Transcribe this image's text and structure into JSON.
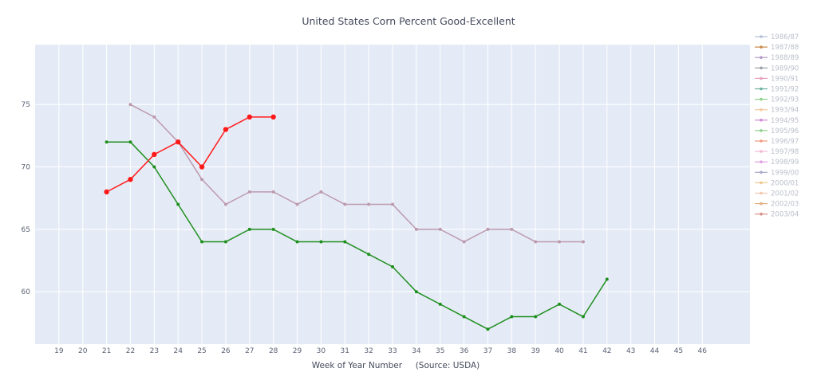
{
  "chart_data": {
    "type": "line",
    "title": "United States Corn Percent Good-Excellent",
    "xlabel": "Week of Year Number     (Source: USDA)",
    "ylabel": "",
    "xlim": [
      18,
      48
    ],
    "ylim": [
      55.8,
      79.8
    ],
    "x_ticks": [
      19,
      20,
      21,
      22,
      23,
      24,
      25,
      26,
      27,
      28,
      29,
      30,
      31,
      32,
      33,
      34,
      35,
      36,
      37,
      38,
      39,
      40,
      41,
      42,
      43,
      44,
      45,
      46
    ],
    "y_ticks": [
      60,
      65,
      70,
      75
    ],
    "grid": true,
    "legend_position": "right",
    "legend": [
      {
        "name": "1986/87",
        "color": "#b4bfd6"
      },
      {
        "name": "1987/88",
        "color": "#c98a4a"
      },
      {
        "name": "1988/89",
        "color": "#b09ac6"
      },
      {
        "name": "1989/90",
        "color": "#9aa0a8"
      },
      {
        "name": "1990/91",
        "color": "#e9a0c0"
      },
      {
        "name": "1991/92",
        "color": "#6ab0a0"
      },
      {
        "name": "1992/93",
        "color": "#8fd08a"
      },
      {
        "name": "1993/94",
        "color": "#f2c9a0"
      },
      {
        "name": "1994/95",
        "color": "#d08ad6"
      },
      {
        "name": "1995/96",
        "color": "#90d090"
      },
      {
        "name": "1996/97",
        "color": "#f09a80"
      },
      {
        "name": "1997/98",
        "color": "#f4b8d8"
      },
      {
        "name": "1998/99",
        "color": "#e0a0e0"
      },
      {
        "name": "1999/00",
        "color": "#a8a8c8"
      },
      {
        "name": "2000/01",
        "color": "#f0c890"
      },
      {
        "name": "2001/02",
        "color": "#f0c8b0"
      },
      {
        "name": "2002/03",
        "color": "#e0b080"
      },
      {
        "name": "2003/04",
        "color": "#d89088"
      }
    ],
    "series": [
      {
        "color": "#bc9aae",
        "marker_size": 2,
        "x": [
          22,
          23,
          24,
          25,
          26,
          27,
          28,
          29,
          30,
          31,
          32,
          33,
          34,
          35,
          36,
          37,
          38,
          39,
          40,
          41
        ],
        "values": [
          75,
          74,
          72,
          69,
          67,
          68,
          68,
          67,
          68,
          67,
          67,
          67,
          65,
          65,
          64,
          65,
          65,
          64,
          64,
          64
        ]
      },
      {
        "color": "#1e8f1e",
        "marker_size": 2,
        "x": [
          21,
          22,
          23,
          24,
          25,
          26,
          27,
          28,
          29,
          30,
          31,
          32,
          33,
          34,
          35,
          36,
          37,
          38,
          39,
          40,
          41,
          42
        ],
        "values": [
          72,
          72,
          70,
          67,
          64,
          64,
          65,
          65,
          64,
          64,
          64,
          63,
          62,
          60,
          59,
          58,
          57,
          58,
          58,
          59,
          58,
          61
        ]
      },
      {
        "color": "#ff1a1a",
        "marker_size": 3.2,
        "x": [
          21,
          22,
          23,
          24,
          25,
          26,
          27,
          28
        ],
        "values": [
          68,
          69,
          71,
          72,
          70,
          73,
          74,
          74
        ]
      }
    ]
  }
}
